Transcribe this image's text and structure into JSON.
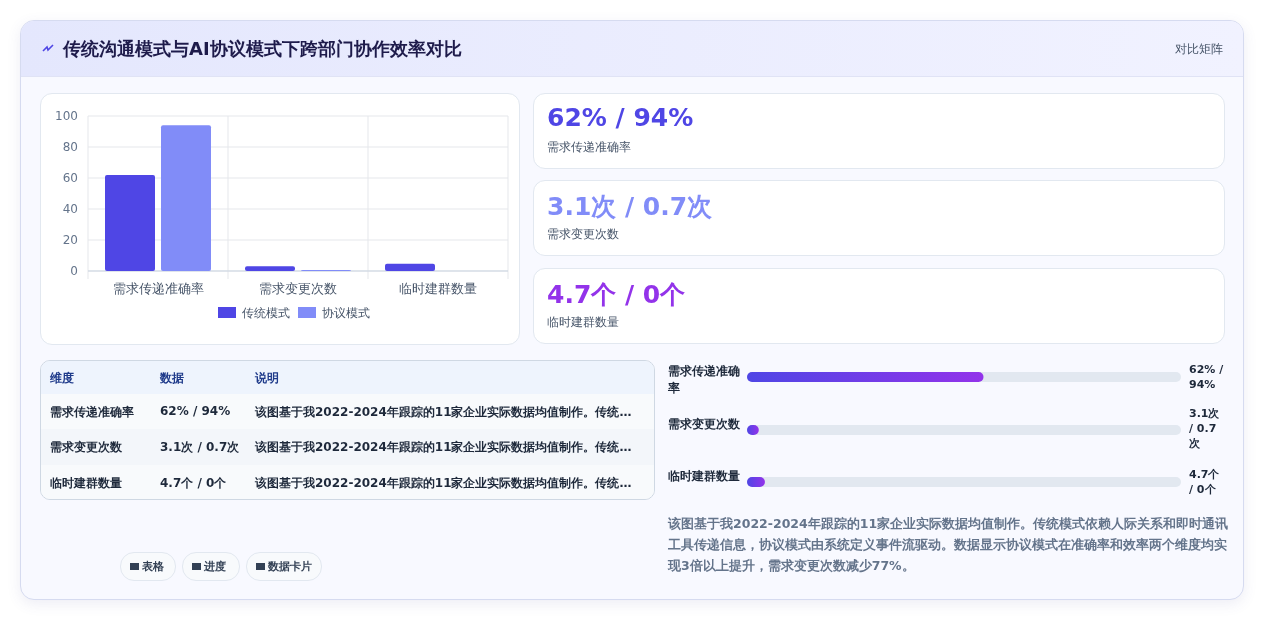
{
  "chart_data": [
    {
      "type": "other",
      "title": "传统沟通模式与AI协议模式下跨部门协作效率对比",
      "subtitle": "对比矩阵"
    },
    {
      "type": "bar",
      "categories": [
        "需求传递准确率",
        "需求变更次数",
        "临时建群数量"
      ],
      "series": [
        {
          "name": "传统模式",
          "color": "#4f46e5",
          "values": [
            62,
            3.1,
            4.7
          ]
        },
        {
          "name": "协议模式",
          "color": "#818cf8",
          "values": [
            94,
            0.7,
            0
          ]
        }
      ],
      "ylim": [
        0,
        100
      ],
      "yticks": [
        0,
        20,
        40,
        60,
        80,
        100
      ],
      "grid": true,
      "legend": "bottom"
    },
    {
      "type": "other",
      "annotations": [
        "62% / 94%",
        "需求传递准确率",
        "3.1次 / 0.7次",
        "需求变更次数",
        "4.7个 / 0个",
        "临时建群数量"
      ],
      "colors": [
        "#4f46e5",
        "#818cf8",
        "#9333ea"
      ]
    },
    {
      "type": "other",
      "annotations": [
        "维度",
        "数据",
        "说明",
        "需求传递准确率",
        "62% / 94%",
        "该图基于我2022-2024年跟踪的11家企业实际数据均值制作。传统…",
        "需求变更次数",
        "3.1次 / 0.7次",
        "该图基于我2022-2024年跟踪的11家企业实际数据均值制作。传统…",
        "临时建群数量",
        "4.7个 / 0个",
        "该图基于我2022-2024年跟踪的11家企业实际数据均值制作。传统…"
      ]
    },
    {
      "type": "bar",
      "orientation": "horizontal",
      "categories": [
        "需求传递准确率",
        "需求变更次数",
        "临时建群数量"
      ],
      "values": [
        62,
        3.1,
        4.7
      ],
      "value_labels": [
        "62% / 94%",
        "3.1次 / 0.7次",
        "4.7个 / 0个"
      ],
      "color": "#4f46e5",
      "annotations": [
        "该图基于我2022-2024年跟踪的11家企业实际数据均值制作。传统模式依赖人际关系和即时通讯工具传递信息，协议模式由系统定义事件流驱动。数据显示协议模式在准确率和效率两个维度均实现3倍以上提升，需求变更次数减少77%。"
      ]
    },
    {
      "type": "other",
      "annotations": [
        "表格",
        "进度",
        "数据卡片"
      ]
    }
  ]
}
